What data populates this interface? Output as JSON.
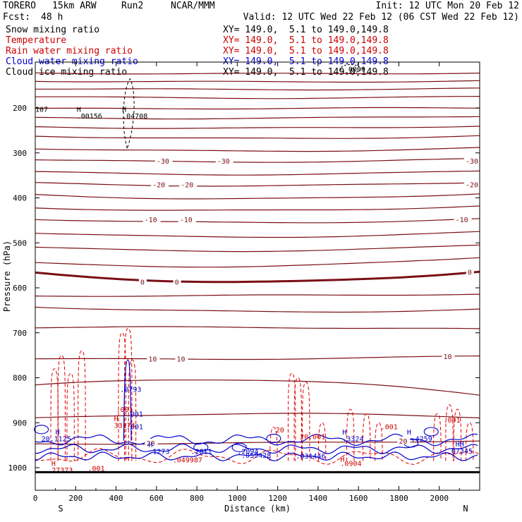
{
  "header": {
    "model": "TORERO",
    "resolution": "15km ARW",
    "run": "Run2",
    "org": "NCAR/MMM",
    "init": "Init: 12 UTC Mon 20 Feb 12",
    "fcst_label": "Fcst:",
    "fcst_value": "48 h",
    "valid": "Valid: 12 UTC Wed 22 Feb 12 (06 CST Wed 22 Feb 12)"
  },
  "fields": [
    {
      "name": "Snow mixing ratio",
      "color": "#000000",
      "xy": "XY= 149.0,  5.1 to 149.0,149.8"
    },
    {
      "name": "Temperature",
      "color": "#cc0000",
      "xy": "XY= 149.0,  5.1 to 149.0,149.8"
    },
    {
      "name": "Rain water mixing ratio",
      "color": "#cc0000",
      "xy": "XY= 149.0,  5.1 to 149.0,149.8"
    },
    {
      "name": "Cloud water mixing ratio",
      "color": "#0000cc",
      "xy": "XY= 149.0,  5.1 to 149.0,149.8"
    },
    {
      "name": "Cloud ice mixing ratio",
      "color": "#000000",
      "xy": "XY= 149.0,  5.1 to 149.0,149.8"
    }
  ],
  "colors": {
    "temperature": "#7a0f14",
    "zero_isotherm": "#7a0f14",
    "rain": "#e00000",
    "cloud_water": "#0000cc",
    "ice": "#000000",
    "terrain": "#000000"
  },
  "chart_data": {
    "type": "cross-section",
    "xlabel": "Distance (km)",
    "ylabel": "Pressure (hPa)",
    "xlim": [
      0,
      2200
    ],
    "ylim": [
      1020,
      100
    ],
    "x_ticks": [
      0,
      200,
      400,
      600,
      800,
      1000,
      1200,
      1400,
      1600,
      1800,
      2000
    ],
    "y_ticks": [
      200,
      300,
      400,
      500,
      600,
      700,
      800,
      900,
      1000
    ],
    "left_end_label": "S",
    "right_end_label": "N",
    "terrain_pressure": 1010,
    "temperature_contours": [
      {
        "p_left": 122,
        "p_mid": 124,
        "p_right": 122,
        "label": ""
      },
      {
        "p_left": 140,
        "p_mid": 142,
        "p_right": 140,
        "label": ""
      },
      {
        "p_left": 157,
        "p_mid": 159,
        "p_right": 157,
        "label": ""
      },
      {
        "p_left": 175,
        "p_mid": 178,
        "p_right": 175,
        "label": ""
      },
      {
        "p_left": 202,
        "p_mid": 201,
        "p_right": 200,
        "label": ""
      },
      {
        "p_left": 222,
        "p_mid": 223,
        "p_right": 218,
        "label": ""
      },
      {
        "p_left": 242,
        "p_mid": 245,
        "p_right": 240,
        "label": ""
      },
      {
        "p_left": 262,
        "p_mid": 268,
        "p_right": 262,
        "label": ""
      },
      {
        "p_left": 290,
        "p_mid": 296,
        "p_right": 289,
        "label": ""
      },
      {
        "p_left": 315,
        "p_mid": 320,
        "p_right": 313,
        "label": "-30"
      },
      {
        "p_left": 342,
        "p_mid": 348,
        "p_right": 340,
        "label": ""
      },
      {
        "p_left": 367,
        "p_mid": 373,
        "p_right": 365,
        "label": "-20"
      },
      {
        "p_left": 393,
        "p_mid": 402,
        "p_right": 390,
        "label": ""
      },
      {
        "p_left": 422,
        "p_mid": 428,
        "p_right": 418,
        "label": ""
      },
      {
        "p_left": 447,
        "p_mid": 455,
        "p_right": 447,
        "label": "-10"
      },
      {
        "p_left": 478,
        "p_mid": 487,
        "p_right": 476,
        "label": ""
      },
      {
        "p_left": 510,
        "p_mid": 518,
        "p_right": 505,
        "label": ""
      },
      {
        "p_left": 545,
        "p_mid": 552,
        "p_right": 532,
        "label": ""
      },
      {
        "p_left": 567,
        "p_mid": 587,
        "p_right": 563,
        "label": "0"
      },
      {
        "p_left": 618,
        "p_mid": 617,
        "p_right": 614,
        "label": ""
      },
      {
        "p_left": 642,
        "p_mid": 653,
        "p_right": 648,
        "label": ""
      },
      {
        "p_left": 688,
        "p_mid": 688,
        "p_right": 692,
        "label": ""
      },
      {
        "p_left": 758,
        "p_mid": 758,
        "p_right": 752,
        "label": "10"
      },
      {
        "p_left": 817,
        "p_mid": 805,
        "p_right": 838,
        "label": ""
      },
      {
        "p_left": 890,
        "p_mid": 880,
        "p_right": 888,
        "label": ""
      },
      {
        "p_left": 947,
        "p_mid": 945,
        "p_right": 940,
        "label": "20"
      }
    ],
    "contour_labels": [
      {
        "x": 600,
        "p": 318,
        "text": "-30"
      },
      {
        "x": 900,
        "p": 318,
        "text": "-30"
      },
      {
        "x": 2130,
        "p": 318,
        "text": "-30"
      },
      {
        "x": 580,
        "p": 370,
        "text": "-20"
      },
      {
        "x": 720,
        "p": 370,
        "text": "-20"
      },
      {
        "x": 2130,
        "p": 370,
        "text": "-20"
      },
      {
        "x": 540,
        "p": 448,
        "text": "-10"
      },
      {
        "x": 715,
        "p": 448,
        "text": "-10"
      },
      {
        "x": 2080,
        "p": 448,
        "text": "-10"
      },
      {
        "x": 520,
        "p": 587,
        "text": "0"
      },
      {
        "x": 690,
        "p": 587,
        "text": "0"
      },
      {
        "x": 2140,
        "p": 565,
        "text": "0"
      },
      {
        "x": 560,
        "p": 758,
        "text": "10"
      },
      {
        "x": 700,
        "p": 758,
        "text": "10"
      },
      {
        "x": 2020,
        "p": 752,
        "text": "10"
      },
      {
        "x": 550,
        "p": 945,
        "text": "20"
      },
      {
        "x": 1800,
        "p": 940,
        "text": "20"
      }
    ],
    "extrema_labels": [
      {
        "x": 0,
        "p": 202,
        "text": "107",
        "color": "#000000"
      },
      {
        "x": 205,
        "p": 202,
        "text": "H",
        "color": "#000000"
      },
      {
        "x": 205,
        "p": 217,
        "text": ".00156",
        "color": "#000000"
      },
      {
        "x": 430,
        "p": 202,
        "text": "H",
        "color": "#000000"
      },
      {
        "x": 430,
        "p": 217,
        "text": ".04708",
        "color": "#000000"
      },
      {
        "x": 1550,
        "p": 113,
        "text": "0000",
        "color": "#000000"
      },
      {
        "x": 420,
        "p": 825,
        "text": ".0793",
        "color": "#0000cc"
      },
      {
        "x": 450,
        "p": 880,
        "text": ".001",
        "color": "#0000cc"
      },
      {
        "x": 450,
        "p": 908,
        "text": ".001",
        "color": "#0000cc"
      },
      {
        "x": 400,
        "p": 870,
        "text": ".001",
        "color": "#cc0000"
      },
      {
        "x": 390,
        "p": 890,
        "text": "H",
        "color": "#cc0000"
      },
      {
        "x": 390,
        "p": 905,
        "text": "33174",
        "color": "#cc0000"
      },
      {
        "x": 100,
        "p": 920,
        "text": "H",
        "color": "#0000cc"
      },
      {
        "x": 30,
        "p": 935,
        "text": "20.1125",
        "color": "#0000cc"
      },
      {
        "x": 560,
        "p": 948,
        "text": "H",
        "color": "#0000cc"
      },
      {
        "x": 560,
        "p": 963,
        "text": ".1273",
        "color": "#0000cc"
      },
      {
        "x": 770,
        "p": 963,
        "text": ".2811",
        "color": "#0000cc"
      },
      {
        "x": 1000,
        "p": 963,
        "text": ".2094",
        "color": "#0000cc"
      },
      {
        "x": 1190,
        "p": 915,
        "text": "20",
        "color": "#cc0000"
      },
      {
        "x": 1310,
        "p": 930,
        "text": "20.001",
        "color": "#cc0000"
      },
      {
        "x": 1520,
        "p": 920,
        "text": "H",
        "color": "#0000cc"
      },
      {
        "x": 1520,
        "p": 935,
        "text": ".3324",
        "color": "#0000cc"
      },
      {
        "x": 1710,
        "p": 908,
        "text": ".001",
        "color": "#cc0000"
      },
      {
        "x": 1840,
        "p": 920,
        "text": "H",
        "color": "#0000cc"
      },
      {
        "x": 1860,
        "p": 935,
        "text": ".4259",
        "color": "#0000cc"
      },
      {
        "x": 2020,
        "p": 893,
        "text": ".001",
        "color": "#cc0000"
      },
      {
        "x": 2080,
        "p": 947,
        "text": "HH",
        "color": "#0000cc"
      },
      {
        "x": 2060,
        "p": 962,
        "text": "07345",
        "color": "#0000cc"
      },
      {
        "x": 80,
        "p": 990,
        "text": "H",
        "color": "#cc0000"
      },
      {
        "x": 60,
        "p": 1005,
        "text": ".27373",
        "color": "#cc0000"
      },
      {
        "x": 260,
        "p": 1001,
        "text": ".001",
        "color": "#cc0000"
      },
      {
        "x": 680,
        "p": 982,
        "text": ".049987",
        "color": "#cc0000"
      },
      {
        "x": 1020,
        "p": 972,
        "text": ".059428",
        "color": "#0000cc"
      },
      {
        "x": 1290,
        "p": 973,
        "text": ".031446",
        "color": "#0000cc"
      },
      {
        "x": 1510,
        "p": 980,
        "text": "H",
        "color": "#cc0000"
      },
      {
        "x": 1510,
        "p": 990,
        "text": ".0904",
        "color": "#cc0000"
      }
    ]
  }
}
